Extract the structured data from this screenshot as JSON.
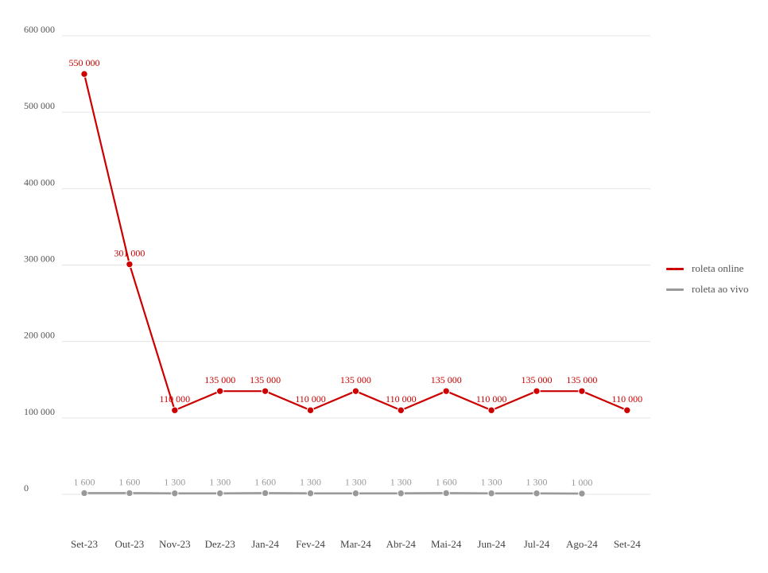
{
  "chart_data": {
    "type": "line",
    "categories": [
      "Set-23",
      "Out-23",
      "Nov-23",
      "Dez-23",
      "Jan-24",
      "Fev-24",
      "Mar-24",
      "Abr-24",
      "Mai-24",
      "Jun-24",
      "Jul-24",
      "Ago-24",
      "Set-24"
    ],
    "series": [
      {
        "name": "roleta online",
        "color": "#cc0000",
        "values": [
          550000,
          301000,
          110000,
          135000,
          135000,
          110000,
          135000,
          110000,
          135000,
          110000,
          135000,
          135000,
          110000
        ],
        "labels": [
          "550 000",
          "301 000",
          "110 000",
          "135 000",
          "135 000",
          "110 000",
          "135 000",
          "110 000",
          "135 000",
          "110 000",
          "135 000",
          "135 000",
          "110 000"
        ]
      },
      {
        "name": "roleta ao vivo",
        "color": "#999999",
        "values": [
          1600,
          1600,
          1300,
          1300,
          1600,
          1300,
          1300,
          1300,
          1600,
          1300,
          1300,
          1000,
          null
        ],
        "labels": [
          "1 600",
          "1 600",
          "1 300",
          "1 300",
          "1 600",
          "1 300",
          "1 300",
          "1 300",
          "1 600",
          "1 300",
          "1 300",
          "1 000",
          null
        ]
      }
    ],
    "y_ticks": [
      0,
      100000,
      200000,
      300000,
      400000,
      500000,
      600000
    ],
    "y_tick_labels": [
      "0",
      "100 000",
      "200 000",
      "300 000",
      "400 000",
      "500 000",
      "600 000"
    ],
    "ylim": [
      0,
      600000
    ],
    "grid": true,
    "legend_position": "right"
  }
}
